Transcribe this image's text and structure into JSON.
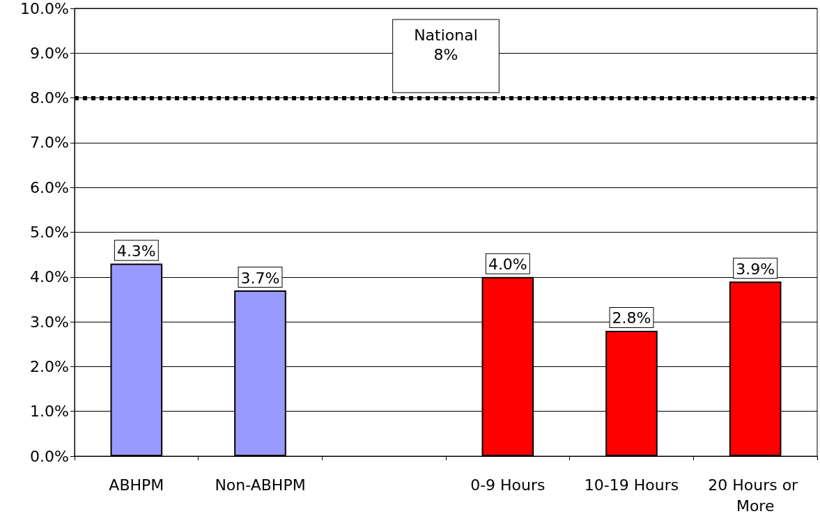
{
  "chart_data": {
    "type": "bar",
    "categories": [
      "ABHPM",
      "Non-ABHPM",
      null,
      "0-9 Hours",
      "10-19 Hours",
      "20 Hours or More"
    ],
    "values": [
      4.3,
      3.7,
      null,
      4.0,
      2.8,
      3.9
    ],
    "colors": [
      "#9999ff",
      "#9999ff",
      "#9999ff",
      "#ff0000",
      "#ff0000",
      "#ff0000"
    ],
    "value_labels": [
      "4.3%",
      "3.7%",
      null,
      "4.0%",
      "2.8%",
      "3.9%"
    ],
    "ylim": [
      0,
      10
    ],
    "yticks": [
      {
        "value": 0,
        "label": "0.0%"
      },
      {
        "value": 1,
        "label": "1.0%"
      },
      {
        "value": 2,
        "label": "2.0%"
      },
      {
        "value": 3,
        "label": "3.0%"
      },
      {
        "value": 4,
        "label": "4.0%"
      },
      {
        "value": 5,
        "label": "5.0%"
      },
      {
        "value": 6,
        "label": "6.0%"
      },
      {
        "value": 7,
        "label": "7.0%"
      },
      {
        "value": 8,
        "label": "8.0%"
      },
      {
        "value": 9,
        "label": "9.0%"
      },
      {
        "value": 10,
        "label": "10.0%"
      }
    ],
    "grid": "y",
    "ref_lines": [
      {
        "axis": "y",
        "value": 8,
        "label": "National\n8%",
        "color": "#000000",
        "line_style": "dotted"
      }
    ]
  }
}
